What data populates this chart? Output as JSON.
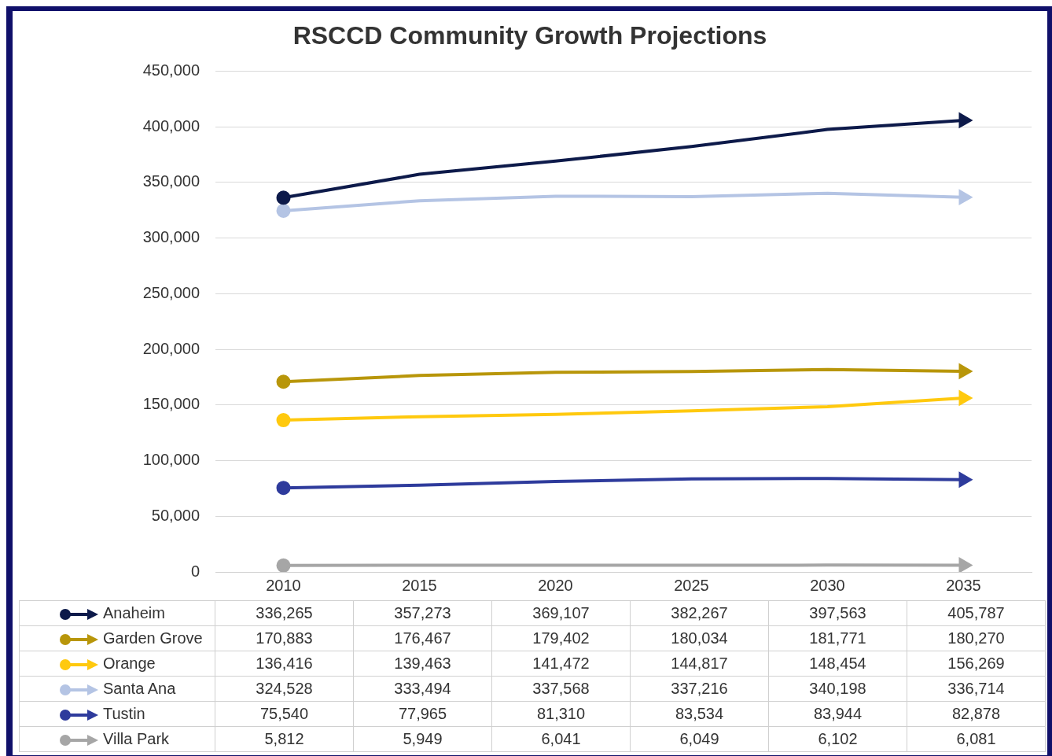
{
  "chart_data": {
    "type": "line",
    "title": "RSCCD Community Growth Projections",
    "categories": [
      "2010",
      "2015",
      "2020",
      "2025",
      "2030",
      "2035"
    ],
    "series": [
      {
        "name": "Anaheim",
        "color": "#0d1a4a",
        "values": [
          336265,
          357273,
          369107,
          382267,
          397563,
          405787
        ],
        "value_labels": [
          "336,265",
          "357,273",
          "369,107",
          "382,267",
          "397,563",
          "405,787"
        ]
      },
      {
        "name": "Garden Grove",
        "color": "#b8960a",
        "values": [
          170883,
          176467,
          179402,
          180034,
          181771,
          180270
        ],
        "value_labels": [
          "170,883",
          "176,467",
          "179,402",
          "180,034",
          "181,771",
          "180,270"
        ]
      },
      {
        "name": "Orange",
        "color": "#ffc90e",
        "values": [
          136416,
          139463,
          141472,
          144817,
          148454,
          156269
        ],
        "value_labels": [
          "136,416",
          "139,463",
          "141,472",
          "144,817",
          "148,454",
          "156,269"
        ]
      },
      {
        "name": "Santa Ana",
        "color": "#b4c4e4",
        "values": [
          324528,
          333494,
          337568,
          337216,
          340198,
          336714
        ],
        "value_labels": [
          "324,528",
          "333,494",
          "337,568",
          "337,216",
          "340,198",
          "336,714"
        ]
      },
      {
        "name": "Tustin",
        "color": "#2e3b9c",
        "values": [
          75540,
          77965,
          81310,
          83534,
          83944,
          82878
        ],
        "value_labels": [
          "75,540",
          "77,965",
          "81,310",
          "83,534",
          "83,944",
          "82,878"
        ]
      },
      {
        "name": "Villa Park",
        "color": "#a6a6a6",
        "values": [
          5812,
          5949,
          6041,
          6049,
          6102,
          6081
        ],
        "value_labels": [
          "5,812",
          "5,949",
          "6,041",
          "6,049",
          "6,102",
          "6,081"
        ]
      }
    ],
    "ylim": [
      0,
      450000
    ],
    "yticks": [
      0,
      {
        "value": 50000,
        "label": "50,000"
      },
      {
        "value": 100000,
        "label": "100,000"
      },
      {
        "value": 150000,
        "label": "150,000"
      },
      {
        "value": 200000,
        "label": "200,000"
      },
      {
        "value": 250000,
        "label": "250,000"
      },
      {
        "value": 300000,
        "label": "300,000"
      },
      {
        "value": 350000,
        "label": "350,000"
      },
      {
        "value": 400000,
        "label": "400,000"
      },
      {
        "value": 450000,
        "label": "450,000"
      }
    ],
    "grid": "y",
    "legend": "bottom",
    "line_style": "solid"
  }
}
